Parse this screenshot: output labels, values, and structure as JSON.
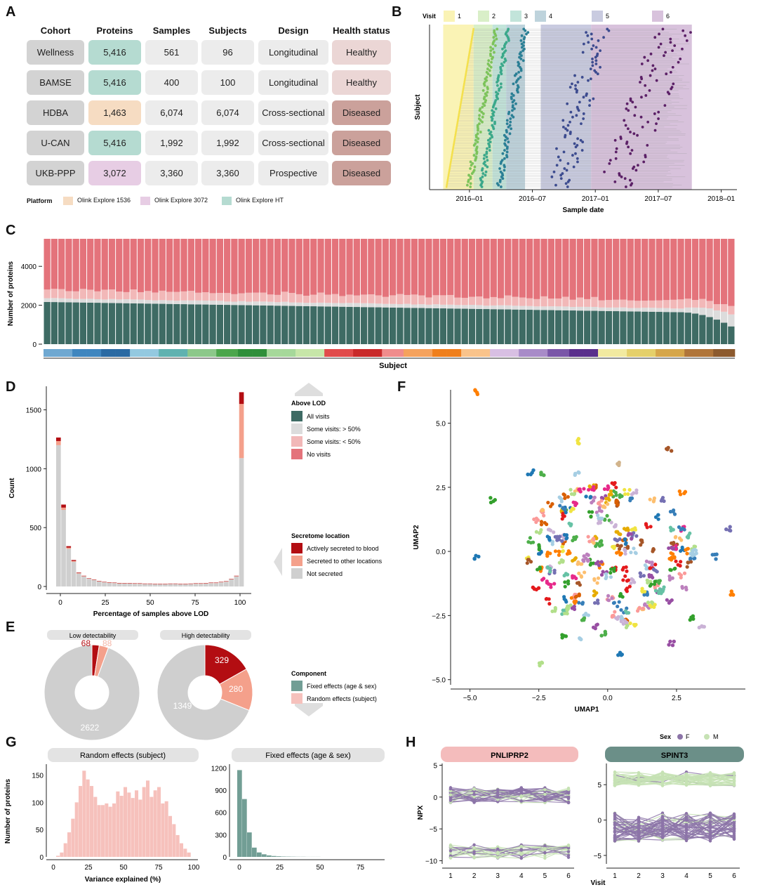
{
  "colors": {
    "dark_green": "#3e6b64",
    "light_grey": "#dcdcdc",
    "pink_light": "#f2b8b8",
    "pink": "#e4737b",
    "red_dark": "#b30d12",
    "salmon": "#f4a08b",
    "teal_platform": "#b5dbd1",
    "peach_platform": "#f6dcc2",
    "lilac_platform": "#e7cde4",
    "healthy": "#ebd6d5",
    "diseased": "#cba19b",
    "cell_grey": "#ececec",
    "cohort_grey": "#d3d3d3",
    "facet_grey": "#e3e3e3",
    "pnliprp2_facet": "#f4bcbc",
    "spint3_facet": "#6b8f88",
    "F_purple": "#8c74a8",
    "M_green": "#c6e2b4",
    "hist_pink": "#f6c1bc",
    "hist_teal": "#729e95"
  },
  "panelA": {
    "letter": "A",
    "headers": [
      "Cohort",
      "Proteins",
      "Samples",
      "Subjects",
      "Design",
      "Health status"
    ],
    "rows": [
      {
        "cohort": "Wellness",
        "proteins": "5,416",
        "platform": "ht",
        "samples": "561",
        "subjects": "96",
        "design": "Longitudinal",
        "health": "Healthy"
      },
      {
        "cohort": "BAMSE",
        "proteins": "5,416",
        "platform": "ht",
        "samples": "400",
        "subjects": "100",
        "design": "Longitudinal",
        "health": "Healthy"
      },
      {
        "cohort": "HDBA",
        "proteins": "1,463",
        "platform": "1536",
        "samples": "6,074",
        "subjects": "6,074",
        "design": "Cross-sectional",
        "health": "Diseased"
      },
      {
        "cohort": "U-CAN",
        "proteins": "5,416",
        "platform": "ht",
        "samples": "1,992",
        "subjects": "1,992",
        "design": "Cross-sectional",
        "health": "Diseased"
      },
      {
        "cohort": "UKB-PPP",
        "proteins": "3,072",
        "platform": "3072",
        "samples": "3,360",
        "subjects": "3,360",
        "design": "Prospective",
        "health": "Diseased"
      }
    ],
    "legend_title": "Platform",
    "legend": [
      "Olink Explore 1536",
      "Olink Explore 3072",
      "Olink Explore HT"
    ]
  },
  "panelB": {
    "letter": "B",
    "visit_label": "Visit",
    "visits": [
      "1",
      "2",
      "3",
      "4",
      "5",
      "6"
    ],
    "visit_colors": [
      "#f4e04d",
      "#7cc35a",
      "#3aa88a",
      "#2a7f95",
      "#3c4b8f",
      "#5b1f66"
    ],
    "visit_bg": [
      "#faf3b5",
      "#d9efc8",
      "#c2e4da",
      "#bed3dc",
      "#c9cbe0",
      "#d8c2dc"
    ],
    "ylabel": "Subject",
    "xlabel": "Sample date",
    "xticks": [
      "2016–01",
      "2016–07",
      "2017–01",
      "2017–07",
      "2018–01"
    ]
  },
  "panelC": {
    "letter": "C",
    "ylabel": "Number of proteins",
    "xlabel": "Subject",
    "yticks": [
      "0",
      "2000",
      "4000"
    ],
    "n_subjects": 96,
    "total": 5416
  },
  "panelD": {
    "letter": "D",
    "ylabel": "Count",
    "xlabel": "Percentage of samples above LOD",
    "yticks": [
      "0",
      "500",
      "1000",
      "1500"
    ],
    "xticks": [
      "0",
      "25",
      "50",
      "75",
      "100"
    ],
    "legend_lod_title": "Above LOD",
    "legend_lod": [
      "All visits",
      "Some visits: > 50%",
      "Some visits: < 50%",
      "No visits"
    ],
    "legend_sec_title": "Secretome location",
    "legend_sec": [
      "Actively secreted to blood",
      "Secreted to other locations",
      "Not secreted"
    ]
  },
  "panelE": {
    "letter": "E",
    "low_title": "Low detectability",
    "high_title": "High detectability",
    "low_values": {
      "red": "68",
      "salmon": "88",
      "grey": "2622"
    },
    "high_values": {
      "red": "329",
      "salmon": "280",
      "grey": "1349"
    },
    "legend_title": "Component",
    "legend": [
      "Fixed effects (age & sex)",
      "Random effects (subject)"
    ]
  },
  "panelF": {
    "letter": "F",
    "xlabel": "UMAP1",
    "ylabel": "UMAP2",
    "xticks": [
      "−5.0",
      "−2.5",
      "0.0",
      "2.5"
    ],
    "yticks": [
      "5.0",
      "2.5",
      "0.0",
      "−2.5",
      "−5.0"
    ]
  },
  "panelG": {
    "letter": "G",
    "left_title": "Random effects (subject)",
    "right_title": "Fixed effects (age & sex)",
    "ylabel": "Number of proteins",
    "xlabel": "Variance explained (%)",
    "left_yticks": [
      "0",
      "50",
      "100",
      "150"
    ],
    "left_xticks": [
      "0",
      "25",
      "50",
      "75",
      "100"
    ],
    "right_yticks": [
      "0",
      "300",
      "600",
      "900",
      "1200"
    ],
    "right_xticks": [
      "0",
      "25",
      "50",
      "75"
    ]
  },
  "panelH": {
    "letter": "H",
    "sex_label": "Sex",
    "sex_levels": [
      "F",
      "M"
    ],
    "left_title": "PNLIPRP2",
    "right_title": "SPINT3",
    "ylabel": "NPX",
    "xlabel": "Visit",
    "xticks": [
      "1",
      "2",
      "3",
      "4",
      "5",
      "6"
    ],
    "left_yticks": [
      "5",
      "0",
      "−5",
      "−10"
    ],
    "right_yticks": [
      "5",
      "0",
      "−5"
    ]
  }
}
